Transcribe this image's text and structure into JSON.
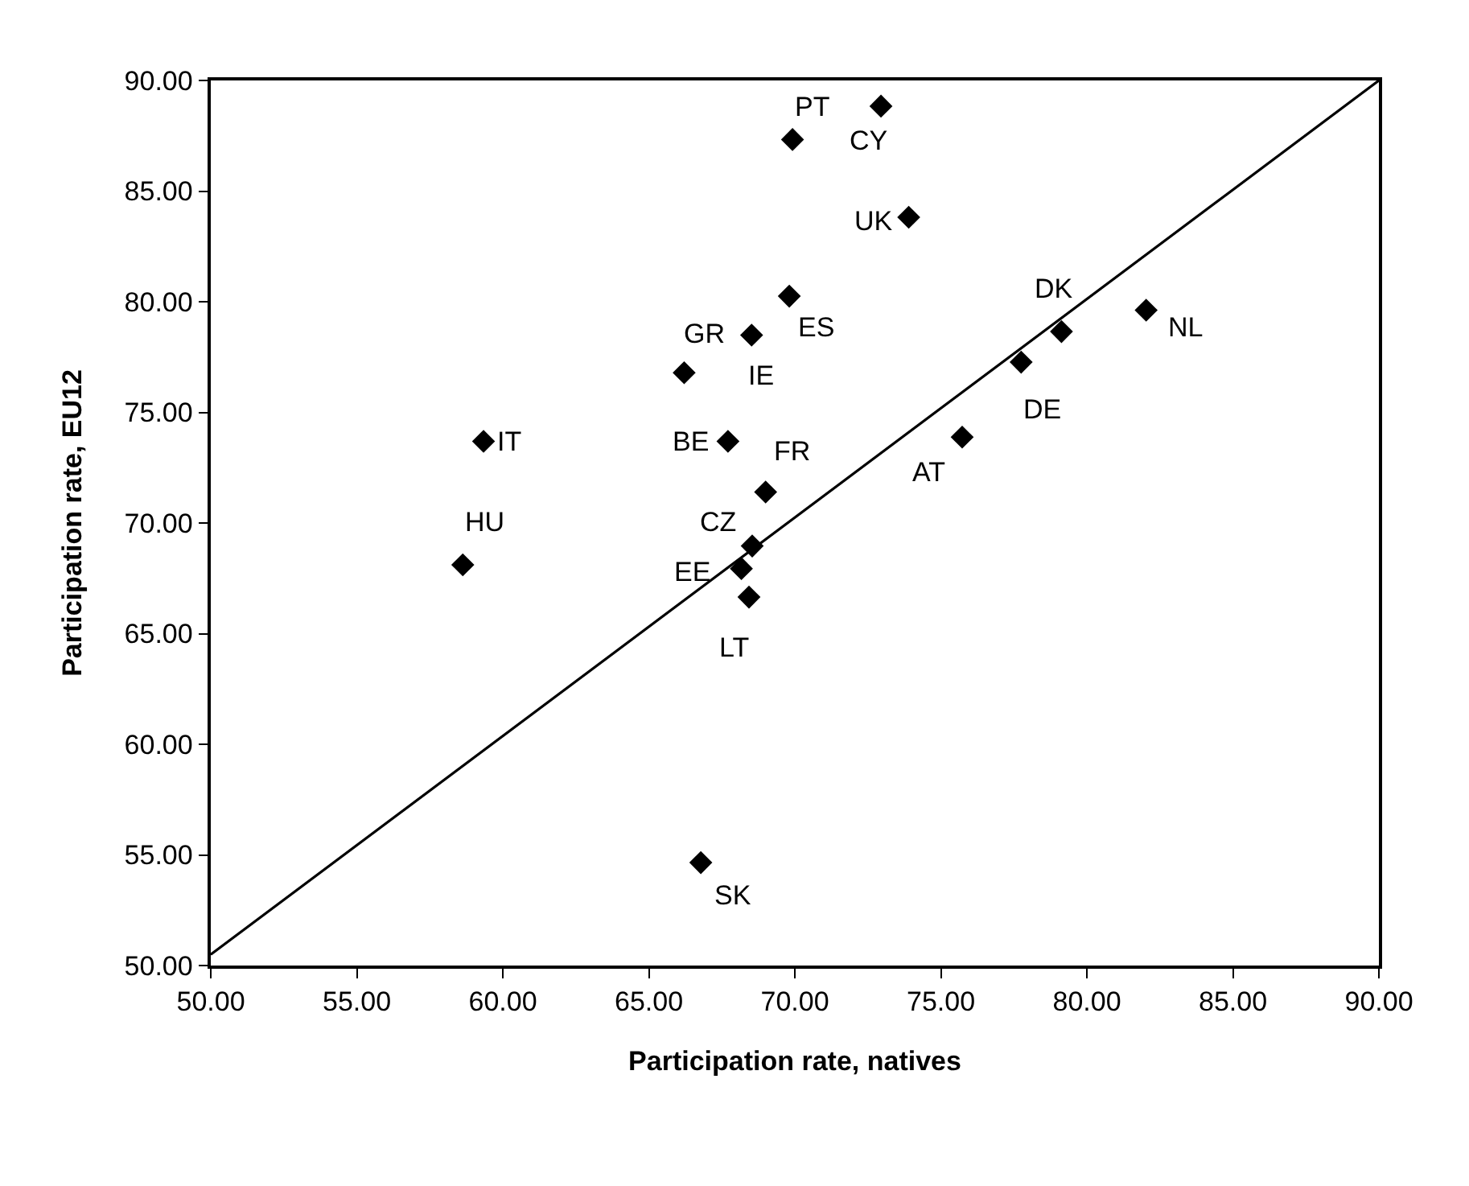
{
  "chart_data": {
    "type": "scatter",
    "xlabel": "Participation rate, natives",
    "ylabel": "Participation rate, EU12",
    "x": [
      72.95,
      69.92,
      73.9,
      69.81,
      66.21,
      68.52,
      59.34,
      58.63,
      67.71,
      69.0,
      68.54,
      68.17,
      68.43,
      75.73,
      77.75,
      79.13,
      82.03,
      66.78
    ],
    "series": [
      {
        "color": "#000000",
        "marker": "diamond",
        "values": [
          88.84,
          87.33,
          83.82,
          80.25,
          76.79,
          78.49,
          73.69,
          68.11,
          73.69,
          71.4,
          68.96,
          67.94,
          66.65,
          73.88,
          77.27,
          78.65,
          79.62,
          54.65
        ]
      },
      {
        "type": "line",
        "color": "#000000",
        "x": [
          50,
          90
        ],
        "values": [
          50.5,
          90
        ],
        "marker": "none",
        "line_style": "solid"
      }
    ],
    "annotations": [
      {
        "text": "CY",
        "x": 72.95,
        "y": 88.84
      },
      {
        "text": "PT",
        "x": 69.92,
        "y": 87.33
      },
      {
        "text": "UK",
        "x": 73.9,
        "y": 83.82
      },
      {
        "text": "ES",
        "x": 69.81,
        "y": 80.25
      },
      {
        "text": "GR",
        "x": 66.21,
        "y": 76.79
      },
      {
        "text": "IE",
        "x": 68.52,
        "y": 78.49
      },
      {
        "text": "IT",
        "x": 59.34,
        "y": 73.69
      },
      {
        "text": "HU",
        "x": 58.63,
        "y": 68.11
      },
      {
        "text": "BE",
        "x": 67.71,
        "y": 73.69
      },
      {
        "text": "FR",
        "x": 69.0,
        "y": 71.4
      },
      {
        "text": "CZ",
        "x": 68.54,
        "y": 68.96
      },
      {
        "text": "EE",
        "x": 68.17,
        "y": 67.94
      },
      {
        "text": "LT",
        "x": 68.43,
        "y": 66.65
      },
      {
        "text": "AT",
        "x": 75.73,
        "y": 73.88
      },
      {
        "text": "DE",
        "x": 77.75,
        "y": 77.27
      },
      {
        "text": "DK",
        "x": 79.13,
        "y": 78.65
      },
      {
        "text": "NL",
        "x": 82.03,
        "y": 79.62
      },
      {
        "text": "SK",
        "x": 66.78,
        "y": 54.65
      }
    ],
    "xlim": [
      50,
      90
    ],
    "xticks": [
      {
        "value": 50,
        "label": "50.00"
      },
      {
        "value": 55,
        "label": "55.00"
      },
      {
        "value": 60,
        "label": "60.00"
      },
      {
        "value": 65,
        "label": "65.00"
      },
      {
        "value": 70,
        "label": "70.00"
      },
      {
        "value": 75,
        "label": "75.00"
      },
      {
        "value": 80,
        "label": "80.00"
      },
      {
        "value": 85,
        "label": "85.00"
      },
      {
        "value": 90,
        "label": "90.00"
      }
    ],
    "ylim": [
      50,
      90
    ],
    "yticks": [
      {
        "value": 50,
        "label": "50.00"
      },
      {
        "value": 55,
        "label": "55.00"
      },
      {
        "value": 60,
        "label": "60.00"
      },
      {
        "value": 65,
        "label": "65.00"
      },
      {
        "value": 70,
        "label": "70.00"
      },
      {
        "value": 75,
        "label": "75.00"
      },
      {
        "value": 80,
        "label": "80.00"
      },
      {
        "value": 85,
        "label": "85.00"
      },
      {
        "value": 90,
        "label": "90.00"
      }
    ],
    "grid": false
  }
}
